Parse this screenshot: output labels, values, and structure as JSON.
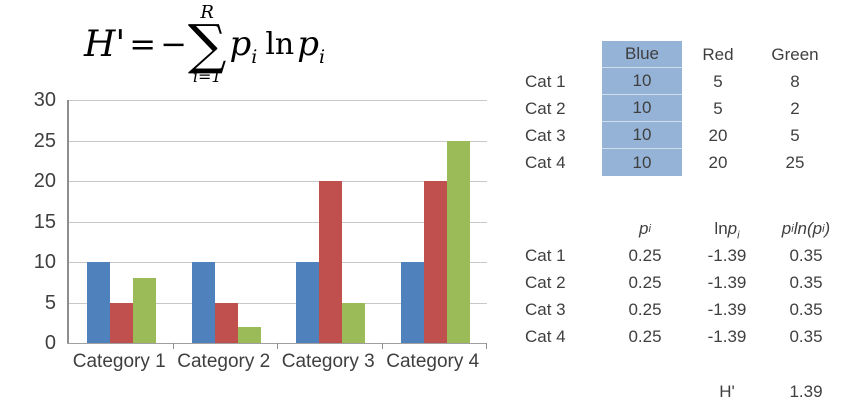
{
  "formula": {
    "lhs": "H'",
    "equals": "=",
    "minus": "−",
    "sum_upper": "R",
    "sum_symbol": "∑",
    "sum_lower": "i=1",
    "term1_base": "p",
    "term1_sub": "i",
    "ln": "ln",
    "term2_base": "p",
    "term2_sub": "i"
  },
  "chart_data": {
    "type": "bar",
    "categories": [
      "Category 1",
      "Category 2",
      "Category 3",
      "Category 4"
    ],
    "series": [
      {
        "name": "Blue",
        "color": "#4F81BD",
        "values": [
          10,
          10,
          10,
          10
        ]
      },
      {
        "name": "Red",
        "color": "#C0504D",
        "values": [
          5,
          5,
          20,
          20
        ]
      },
      {
        "name": "Green",
        "color": "#9BBB59",
        "values": [
          8,
          2,
          5,
          25
        ]
      }
    ],
    "title": "",
    "xlabel": "",
    "ylabel": "",
    "ylim": [
      0,
      30
    ],
    "ytick_interval": 5,
    "grid": true,
    "legend_position": "none"
  },
  "counts_table": {
    "columns": [
      "Blue",
      "Red",
      "Green"
    ],
    "highlighted_column": "Blue",
    "highlight_color": "#95B3D7",
    "rows": [
      {
        "label": "Cat 1",
        "values": [
          "10",
          "5",
          "8"
        ]
      },
      {
        "label": "Cat 2",
        "values": [
          "10",
          "5",
          "2"
        ]
      },
      {
        "label": "Cat 3",
        "values": [
          "10",
          "20",
          "5"
        ]
      },
      {
        "label": "Cat 4",
        "values": [
          "10",
          "20",
          "25"
        ]
      }
    ]
  },
  "calc_table": {
    "header": {
      "pi": {
        "base": "p",
        "sub": "i"
      },
      "lnpi": {
        "prefix": "ln",
        "base": "p",
        "sub": "i"
      },
      "pilnpi": {
        "base": "p",
        "sub": "i",
        "fn": "ln(p",
        "fnsub": "i",
        "close": ")"
      }
    },
    "rows": [
      {
        "label": "Cat 1",
        "pi": "0.25",
        "lnpi": "-1.39",
        "pilnpi": "0.35"
      },
      {
        "label": "Cat 2",
        "pi": "0.25",
        "lnpi": "-1.39",
        "pilnpi": "0.35"
      },
      {
        "label": "Cat 3",
        "pi": "0.25",
        "lnpi": "-1.39",
        "pilnpi": "0.35"
      },
      {
        "label": "Cat 4",
        "pi": "0.25",
        "lnpi": "-1.39",
        "pilnpi": "0.35"
      }
    ],
    "summary": {
      "label": "H'",
      "value": "1.39"
    }
  },
  "colors": {
    "grid": "#C8C8C8",
    "axis": "#8E8E8E",
    "text": "#3F3F3F"
  }
}
